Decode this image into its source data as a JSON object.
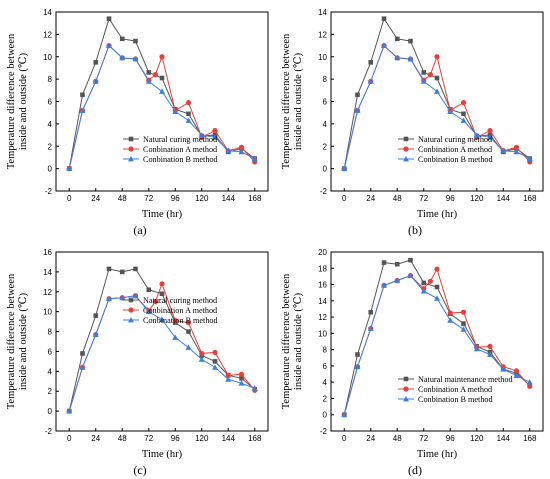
{
  "chart_data": [
    {
      "type": "line",
      "panel_label": "(a)",
      "xlabel": "Time (hr)",
      "ylabel_line1": "Temperature difference between",
      "ylabel_line2": "inside and outside (℃)",
      "xlim": [
        -12,
        180
      ],
      "ylim": [
        -2,
        14
      ],
      "xticks": [
        0,
        24,
        48,
        72,
        96,
        120,
        144,
        168
      ],
      "yticks": [
        -2,
        0,
        2,
        4,
        6,
        8,
        10,
        12,
        14
      ],
      "legend_position": "bottom-right",
      "series": [
        {
          "name": "Natural curing method",
          "color": "#555555",
          "marker": "square",
          "x": [
            0,
            12,
            24,
            36,
            48,
            60,
            72,
            84,
            96,
            108,
            120,
            132,
            144,
            156,
            168
          ],
          "y": [
            0,
            6.6,
            9.5,
            13.4,
            11.6,
            11.4,
            8.6,
            8.1,
            5.3,
            4.9,
            2.9,
            3.0,
            1.5,
            1.8,
            0.9
          ]
        },
        {
          "name": "Conbination A method",
          "color": "#e8403a",
          "marker": "circle",
          "x": [
            0,
            12,
            24,
            36,
            48,
            60,
            72,
            78,
            84,
            96,
            108,
            120,
            132,
            144,
            156,
            168
          ],
          "y": [
            0,
            5.2,
            7.8,
            11.0,
            9.9,
            9.8,
            7.9,
            8.4,
            10.0,
            5.2,
            5.9,
            2.8,
            3.4,
            1.6,
            1.9,
            0.6
          ]
        },
        {
          "name": "Conbination B method",
          "color": "#3a7fe0",
          "marker": "triangle",
          "x": [
            0,
            12,
            24,
            36,
            48,
            60,
            72,
            84,
            96,
            108,
            120,
            132,
            144,
            156,
            168
          ],
          "y": [
            0,
            5.2,
            7.8,
            11.0,
            9.9,
            9.8,
            7.8,
            6.9,
            5.1,
            4.3,
            3.0,
            2.8,
            1.6,
            1.5,
            0.9
          ]
        }
      ]
    },
    {
      "type": "line",
      "panel_label": "(b)",
      "xlabel": "Time (hr)",
      "ylabel_line1": "Temperature difference between",
      "ylabel_line2": "inside and outside (℃)",
      "xlim": [
        -12,
        180
      ],
      "ylim": [
        -2,
        14
      ],
      "xticks": [
        0,
        24,
        48,
        72,
        96,
        120,
        144,
        168
      ],
      "yticks": [
        -2,
        0,
        2,
        4,
        6,
        8,
        10,
        12,
        14
      ],
      "legend_position": "bottom-right",
      "series": [
        {
          "name": "Natural curing method",
          "color": "#555555",
          "marker": "square",
          "x": [
            0,
            12,
            24,
            36,
            48,
            60,
            72,
            84,
            96,
            108,
            120,
            132,
            144,
            156,
            168
          ],
          "y": [
            0,
            6.6,
            9.5,
            13.4,
            11.6,
            11.4,
            8.6,
            8.1,
            5.3,
            4.9,
            2.9,
            3.0,
            1.5,
            1.8,
            0.9
          ]
        },
        {
          "name": "Conbination A method",
          "color": "#e8403a",
          "marker": "circle",
          "x": [
            0,
            12,
            24,
            36,
            48,
            60,
            72,
            78,
            84,
            96,
            108,
            120,
            132,
            144,
            156,
            168
          ],
          "y": [
            0,
            5.2,
            7.8,
            11.0,
            9.9,
            9.8,
            7.9,
            8.4,
            10.0,
            5.2,
            5.9,
            2.8,
            3.4,
            1.6,
            1.9,
            0.6
          ]
        },
        {
          "name": "Conbination B method",
          "color": "#3a7fe0",
          "marker": "triangle",
          "x": [
            0,
            12,
            24,
            36,
            48,
            60,
            72,
            84,
            96,
            108,
            120,
            132,
            144,
            156,
            168
          ],
          "y": [
            0,
            5.2,
            7.8,
            11.0,
            9.9,
            9.8,
            7.8,
            6.9,
            5.1,
            4.3,
            3.0,
            2.8,
            1.6,
            1.5,
            0.9
          ]
        }
      ]
    },
    {
      "type": "line",
      "panel_label": "(c)",
      "xlabel": "Time (hr)",
      "ylabel_line1": "Temperature difference between",
      "ylabel_line2": "inside and outside (℃)",
      "xlim": [
        -12,
        180
      ],
      "ylim": [
        -2,
        16
      ],
      "xticks": [
        0,
        24,
        48,
        72,
        96,
        120,
        144,
        168
      ],
      "yticks": [
        -2,
        0,
        2,
        4,
        6,
        8,
        10,
        12,
        14,
        16
      ],
      "legend_position": "top-right",
      "series": [
        {
          "name": "Natural curing method",
          "color": "#555555",
          "marker": "square",
          "x": [
            0,
            12,
            24,
            36,
            48,
            60,
            72,
            84,
            96,
            108,
            120,
            132,
            144,
            156,
            168
          ],
          "y": [
            0,
            5.8,
            9.6,
            14.3,
            14.0,
            14.3,
            12.2,
            11.8,
            8.9,
            8.0,
            5.6,
            5.0,
            3.6,
            3.3,
            2.2
          ]
        },
        {
          "name": "Conbination A method",
          "color": "#e8403a",
          "marker": "circle",
          "x": [
            0,
            12,
            24,
            36,
            48,
            60,
            72,
            78,
            84,
            96,
            108,
            120,
            132,
            144,
            156,
            168
          ],
          "y": [
            0,
            4.4,
            7.7,
            11.3,
            11.4,
            11.6,
            10.1,
            11.0,
            12.8,
            9.1,
            8.9,
            5.8,
            5.9,
            3.6,
            3.7,
            2.1
          ]
        },
        {
          "name": "Conbination B method",
          "color": "#3a7fe0",
          "marker": "triangle",
          "x": [
            0,
            12,
            24,
            36,
            48,
            60,
            72,
            84,
            96,
            108,
            120,
            132,
            144,
            156,
            168
          ],
          "y": [
            0,
            4.4,
            7.7,
            11.3,
            11.4,
            11.6,
            10.0,
            9.2,
            7.4,
            6.4,
            5.2,
            4.4,
            3.2,
            2.8,
            2.3
          ]
        }
      ]
    },
    {
      "type": "line",
      "panel_label": "(d)",
      "xlabel": "Time (hr)",
      "ylabel_line1": "Temperature difference between",
      "ylabel_line2": "inside and outside (℃)",
      "xlim": [
        -12,
        180
      ],
      "ylim": [
        -2,
        20
      ],
      "xticks": [
        0,
        24,
        48,
        72,
        96,
        120,
        144,
        168
      ],
      "yticks": [
        -2,
        0,
        2,
        4,
        6,
        8,
        10,
        12,
        14,
        16,
        18,
        20
      ],
      "legend_position": "bottom-right",
      "series": [
        {
          "name": "Natural maintenance method",
          "color": "#555555",
          "marker": "square",
          "x": [
            0,
            12,
            24,
            36,
            48,
            60,
            72,
            84,
            96,
            108,
            120,
            132,
            144,
            156,
            168
          ],
          "y": [
            0,
            7.4,
            12.6,
            18.7,
            18.5,
            19.0,
            16.2,
            15.7,
            12.4,
            11.2,
            8.4,
            7.7,
            5.6,
            5.1,
            3.6
          ]
        },
        {
          "name": "Conbination A method",
          "color": "#e8403a",
          "marker": "circle",
          "x": [
            0,
            12,
            24,
            36,
            48,
            60,
            72,
            78,
            84,
            96,
            108,
            120,
            132,
            144,
            156,
            168
          ],
          "y": [
            0,
            5.9,
            10.6,
            15.9,
            16.5,
            17.1,
            15.5,
            16.4,
            17.9,
            12.5,
            12.6,
            8.3,
            8.4,
            5.9,
            5.4,
            3.5
          ]
        },
        {
          "name": "Conbination B method",
          "color": "#3a7fe0",
          "marker": "triangle",
          "x": [
            0,
            12,
            24,
            36,
            48,
            60,
            72,
            84,
            96,
            108,
            120,
            132,
            144,
            156,
            168
          ],
          "y": [
            0,
            5.9,
            10.6,
            15.9,
            16.5,
            17.1,
            15.2,
            14.3,
            11.6,
            10.5,
            8.1,
            7.4,
            5.6,
            4.8,
            4.0
          ]
        }
      ]
    }
  ]
}
